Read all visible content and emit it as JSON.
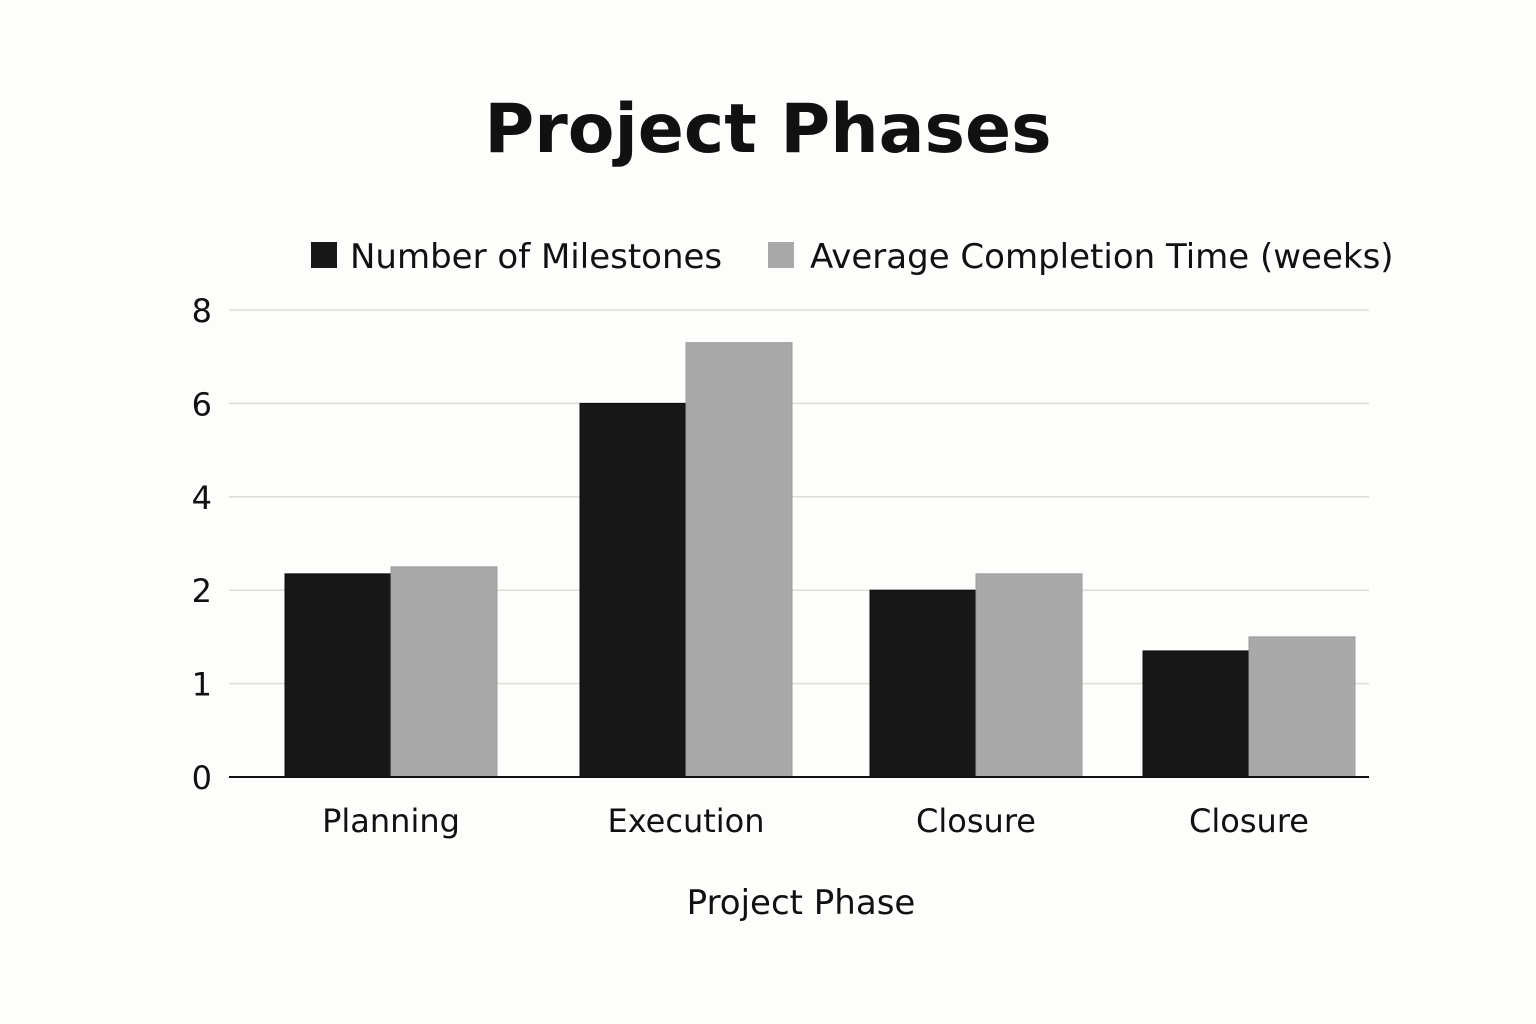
{
  "chart_data": {
    "type": "bar",
    "title": "Project Phases",
    "xlabel": "Project Phase",
    "ylabel": "",
    "categories": [
      "Planning",
      "Execution",
      "Closure",
      "Closure"
    ],
    "yticks": [
      0,
      1,
      2,
      4,
      6,
      8
    ],
    "ylim": [
      0,
      8
    ],
    "grid": true,
    "legend_position": "top",
    "series": [
      {
        "name": "Number of Milestones",
        "color": "#171717",
        "values": [
          2.35,
          6,
          2,
          1.35
        ]
      },
      {
        "name": "Average Completion Time (weeks)",
        "color": "#a9a9a9",
        "values": [
          2.5,
          7.3,
          2.35,
          1.5
        ]
      }
    ]
  }
}
